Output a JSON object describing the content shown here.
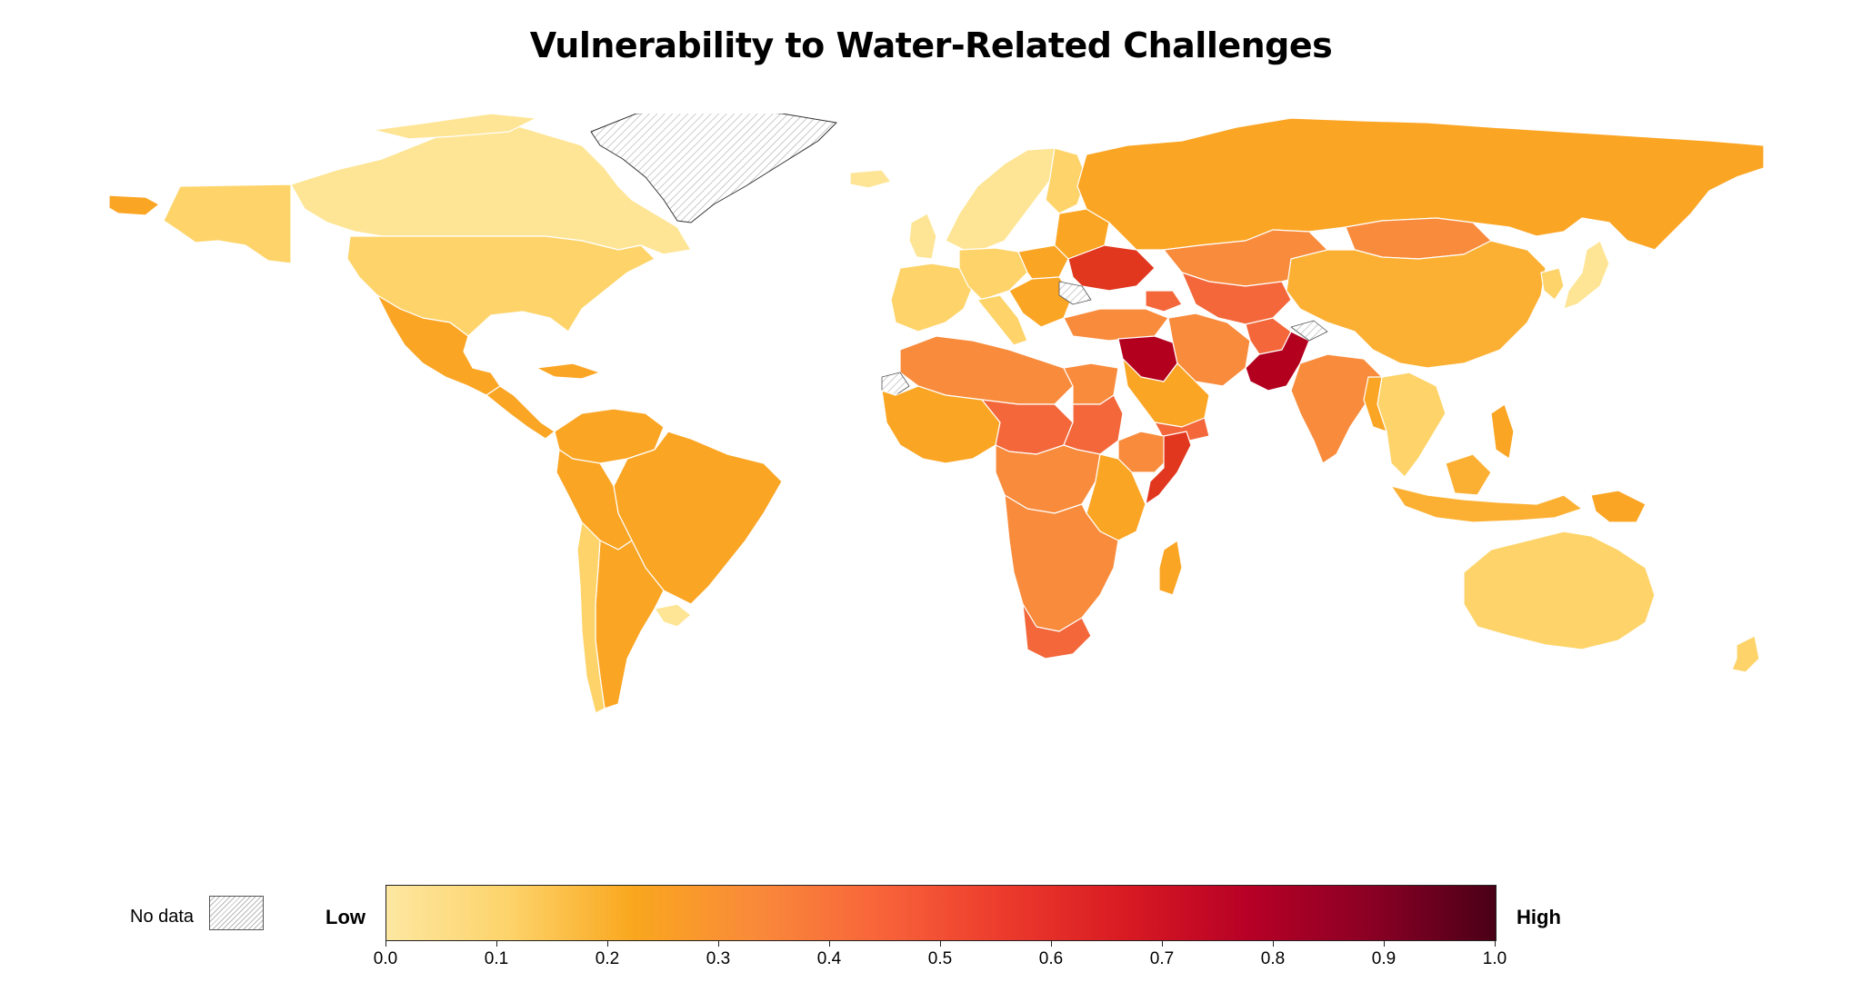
{
  "title": "Vulnerability to Water-Related Challenges",
  "legend": {
    "no_data_label": "No data",
    "low_label": "Low",
    "high_label": "High",
    "ticks": [
      "0.0",
      "0.1",
      "0.2",
      "0.3",
      "0.4",
      "0.5",
      "0.6",
      "0.7",
      "0.8",
      "0.9",
      "1.0"
    ],
    "gradient": [
      "#fde7a1",
      "#fdd36a",
      "#f9a71e",
      "#f98a3a",
      "#f8643a",
      "#ec3b2d",
      "#d81a22",
      "#b70026",
      "#8a0024",
      "#4a0018"
    ]
  },
  "colors": {
    "very_low": "#fee596",
    "low": "#fed46a",
    "low_mid": "#fba524",
    "mid": "#f98b3c",
    "mid_high": "#f3673a",
    "high": "#e1371f",
    "very_high": "#b3001f",
    "no_data": "#eeeeee"
  },
  "chart_data": {
    "type": "choropleth",
    "title": "Vulnerability to Water-Related Challenges",
    "scale_range": [
      0.0,
      1.0
    ],
    "regions": [
      {
        "name": "Canada",
        "value": 0.05
      },
      {
        "name": "Alaska (USA)",
        "value": 0.12
      },
      {
        "name": "United States",
        "value": 0.11
      },
      {
        "name": "Mexico",
        "value": 0.25
      },
      {
        "name": "Central America",
        "value": 0.25
      },
      {
        "name": "Cuba",
        "value": 0.22
      },
      {
        "name": "Colombia",
        "value": 0.22
      },
      {
        "name": "Venezuela",
        "value": 0.22
      },
      {
        "name": "Brazil",
        "value": 0.2
      },
      {
        "name": "Peru",
        "value": 0.22
      },
      {
        "name": "Bolivia",
        "value": 0.22
      },
      {
        "name": "Argentina",
        "value": 0.2
      },
      {
        "name": "Chile",
        "value": 0.12
      },
      {
        "name": "Uruguay",
        "value": 0.08
      },
      {
        "name": "Greenland",
        "value": null
      },
      {
        "name": "Iceland",
        "value": 0.06
      },
      {
        "name": "Norway",
        "value": 0.06
      },
      {
        "name": "Sweden",
        "value": 0.06
      },
      {
        "name": "Finland",
        "value": 0.08
      },
      {
        "name": "United Kingdom",
        "value": 0.1
      },
      {
        "name": "France",
        "value": 0.12
      },
      {
        "name": "Spain",
        "value": 0.12
      },
      {
        "name": "Germany",
        "value": 0.12
      },
      {
        "name": "Italy",
        "value": 0.12
      },
      {
        "name": "Poland",
        "value": 0.2
      },
      {
        "name": "Ukraine",
        "value": 0.55
      },
      {
        "name": "Balkans",
        "value": 0.2
      },
      {
        "name": "Turkey",
        "value": 0.3
      },
      {
        "name": "Russia",
        "value": 0.2
      },
      {
        "name": "Kazakhstan",
        "value": 0.3
      },
      {
        "name": "Central Asia",
        "value": 0.4
      },
      {
        "name": "Mongolia",
        "value": 0.3
      },
      {
        "name": "China",
        "value": 0.18
      },
      {
        "name": "Japan",
        "value": 0.1
      },
      {
        "name": "Korea",
        "value": 0.12
      },
      {
        "name": "Iran",
        "value": 0.32
      },
      {
        "name": "Iraq",
        "value": 0.7
      },
      {
        "name": "Syria",
        "value": 0.7
      },
      {
        "name": "Afghanistan",
        "value": 0.42
      },
      {
        "name": "Pakistan",
        "value": 0.72
      },
      {
        "name": "India",
        "value": 0.38
      },
      {
        "name": "Saudi Arabia",
        "value": 0.2
      },
      {
        "name": "Yemen",
        "value": 0.45
      },
      {
        "name": "Southeast Asia",
        "value": 0.22
      },
      {
        "name": "Indonesia",
        "value": 0.2
      },
      {
        "name": "Papua New Guinea",
        "value": 0.3
      },
      {
        "name": "Australia",
        "value": 0.08
      },
      {
        "name": "New Zealand",
        "value": 0.12
      },
      {
        "name": "North Africa",
        "value": 0.3
      },
      {
        "name": "Egypt",
        "value": 0.35
      },
      {
        "name": "Sudan",
        "value": 0.45
      },
      {
        "name": "Ethiopia",
        "value": 0.42
      },
      {
        "name": "Somalia",
        "value": 0.55
      },
      {
        "name": "West Africa",
        "value": 0.28
      },
      {
        "name": "Central Africa",
        "value": 0.35
      },
      {
        "name": "East Africa",
        "value": 0.3
      },
      {
        "name": "Southern Africa",
        "value": 0.35
      },
      {
        "name": "Madagascar",
        "value": 0.25
      },
      {
        "name": "Western Sahara",
        "value": null
      },
      {
        "name": "Kashmir",
        "value": null
      },
      {
        "name": "Moldova/Romania area",
        "value": null
      }
    ]
  }
}
